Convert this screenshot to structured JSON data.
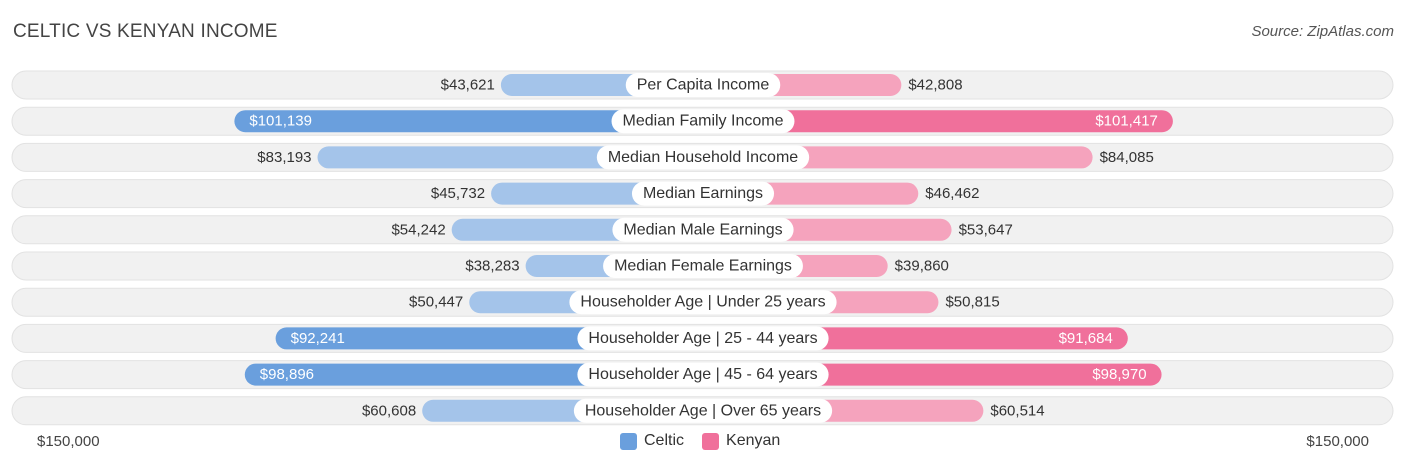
{
  "title": "CELTIC VS KENYAN INCOME",
  "source": "Source: ZipAtlas.com",
  "colors": {
    "celtic_light": "#a4c4ea",
    "celtic_dark": "#6a9fdd",
    "kenyan_light": "#f5a3bd",
    "kenyan_dark": "#f0709b",
    "row_bg": "#f1f1f1"
  },
  "legend": {
    "celtic": "Celtic",
    "kenyan": "Kenyan"
  },
  "axis": {
    "left_label": "$150,000",
    "right_label": "$150,000"
  },
  "chart_data": {
    "type": "bar",
    "orientation": "horizontal-diverging",
    "max": 150000,
    "categories": [
      "Per Capita Income",
      "Median Family Income",
      "Median Household Income",
      "Median Earnings",
      "Median Male Earnings",
      "Median Female Earnings",
      "Householder Age | Under 25 years",
      "Householder Age | 25 - 44 years",
      "Householder Age | 45 - 64 years",
      "Householder Age | Over 65 years"
    ],
    "series": [
      {
        "name": "Celtic",
        "values": [
          43621,
          101139,
          83193,
          45732,
          54242,
          38283,
          50447,
          92241,
          98896,
          60608
        ],
        "labels": [
          "$43,621",
          "$101,139",
          "$83,193",
          "$45,732",
          "$54,242",
          "$38,283",
          "$50,447",
          "$92,241",
          "$98,896",
          "$60,608"
        ]
      },
      {
        "name": "Kenyan",
        "values": [
          42808,
          101417,
          84085,
          46462,
          53647,
          39860,
          50815,
          91684,
          98970,
          60514
        ],
        "labels": [
          "$42,808",
          "$101,417",
          "$84,085",
          "$46,462",
          "$53,647",
          "$39,860",
          "$50,815",
          "$91,684",
          "$98,970",
          "$60,514"
        ]
      }
    ]
  }
}
